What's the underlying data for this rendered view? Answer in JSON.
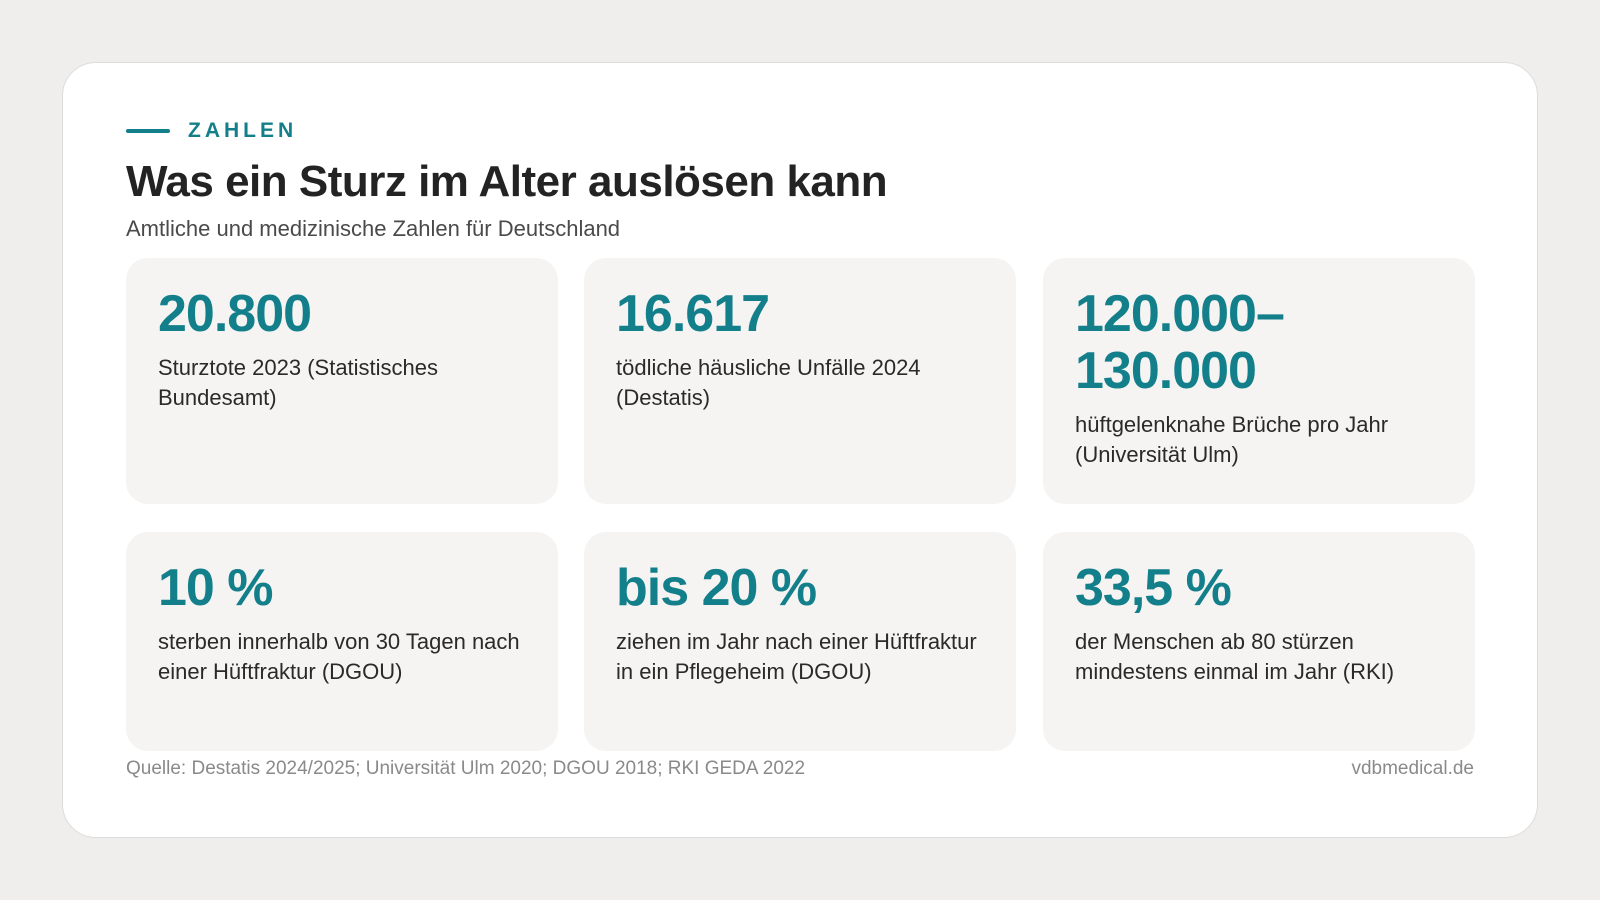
{
  "colors": {
    "accent": "#137f8a",
    "card_background": "#ffffff",
    "tile_background": "#f5f4f2",
    "page_background": "#efeeec"
  },
  "header": {
    "eyebrow": "ZAHLEN",
    "title": "Was ein Sturz im Alter auslösen kann",
    "subtitle": "Amtliche und medizinische Zahlen für Deutschland"
  },
  "stats": [
    {
      "value": "20.800",
      "label": "Sturztote 2023 (Statistisches Bundesamt)"
    },
    {
      "value": "16.617",
      "label": "tödliche häusliche Unfälle 2024 (Destatis)"
    },
    {
      "value": "120.000–130.000",
      "label": "hüftgelenknahe Brüche pro Jahr (Universität Ulm)"
    },
    {
      "value": "10 %",
      "label": "sterben innerhalb von 30 Tagen nach einer Hüftfraktur (DGOU)"
    },
    {
      "value": "bis 20 %",
      "label": "ziehen im Jahr nach einer Hüftfraktur in ein Pflegeheim (DGOU)"
    },
    {
      "value": "33,5 %",
      "label": "der Menschen ab 80 stürzen mindestens einmal im Jahr (RKI)"
    }
  ],
  "footer": {
    "source": "Quelle: Destatis 2024/2025; Universität Ulm 2020; DGOU 2018; RKI GEDA 2022",
    "site": "vdbmedical.de"
  }
}
